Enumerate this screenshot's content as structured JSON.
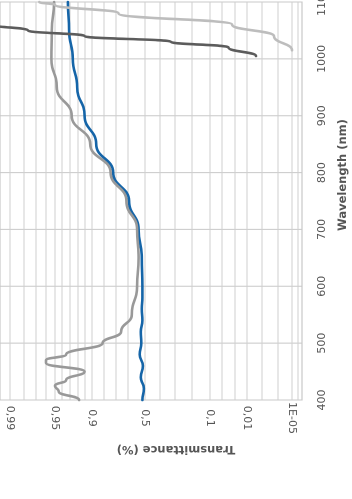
{
  "chart_data": {
    "type": "line",
    "orientation": "rotated-90-clockwise",
    "xlabel": "Wavelength (nm)",
    "ylabel": "Transmittance (%)",
    "x_ticks": [
      "400",
      "500",
      "600",
      "700",
      "800",
      "900",
      "1000",
      "1100"
    ],
    "xlim": [
      400,
      1100
    ],
    "y_ticks": [
      "1E-05",
      "0,01",
      "0,1",
      "0,5",
      "0,9",
      "0,95",
      "0,99"
    ],
    "y_scale": "nonlinear (tick-indexed)",
    "grid": true,
    "legend": "none",
    "series": [
      {
        "color": "#1565a8",
        "points": [
          [
            400,
            3.05
          ],
          [
            420,
            3.02
          ],
          [
            440,
            3.08
          ],
          [
            460,
            3.04
          ],
          [
            480,
            3.1
          ],
          [
            500,
            3.07
          ],
          [
            520,
            3.08
          ],
          [
            540,
            3.05
          ],
          [
            560,
            3.06
          ],
          [
            580,
            3.05
          ],
          [
            600,
            3.05
          ],
          [
            650,
            3.06
          ],
          [
            700,
            3.12
          ],
          [
            750,
            3.3
          ],
          [
            800,
            3.6
          ],
          [
            850,
            3.92
          ],
          [
            900,
            4.2
          ],
          [
            950,
            4.4
          ],
          [
            1000,
            4.52
          ],
          [
            1050,
            4.62
          ],
          [
            1100,
            4.65
          ]
        ]
      },
      {
        "color": "#999999",
        "points": [
          [
            400,
            4.35
          ],
          [
            415,
            4.9
          ],
          [
            425,
            5.0
          ],
          [
            435,
            4.7
          ],
          [
            450,
            4.2
          ],
          [
            465,
            5.2
          ],
          [
            470,
            5.2
          ],
          [
            480,
            4.7
          ],
          [
            500,
            3.8
          ],
          [
            520,
            3.45
          ],
          [
            550,
            3.25
          ],
          [
            600,
            3.15
          ],
          [
            650,
            3.12
          ],
          [
            700,
            3.15
          ],
          [
            750,
            3.35
          ],
          [
            800,
            3.65
          ],
          [
            850,
            4.05
          ],
          [
            900,
            4.55
          ],
          [
            950,
            4.95
          ],
          [
            1000,
            5.08
          ],
          [
            1050,
            5.07
          ],
          [
            1100,
            5.02
          ]
        ]
      },
      {
        "color": "#5c5c5c",
        "points": [
          [
            1005,
            0.8
          ],
          [
            1020,
            1.5
          ],
          [
            1030,
            2.6
          ],
          [
            1040,
            4.2
          ],
          [
            1050,
            5.6
          ],
          [
            1060,
            6.35
          ],
          [
            1068,
            6.58
          ]
        ]
      },
      {
        "color": "#bdbdbd",
        "points": [
          [
            1015,
            0.0
          ],
          [
            1040,
            0.4
          ],
          [
            1060,
            1.4
          ],
          [
            1080,
            3.5
          ],
          [
            1095,
            5.0
          ],
          [
            1100,
            5.35
          ]
        ]
      }
    ]
  }
}
